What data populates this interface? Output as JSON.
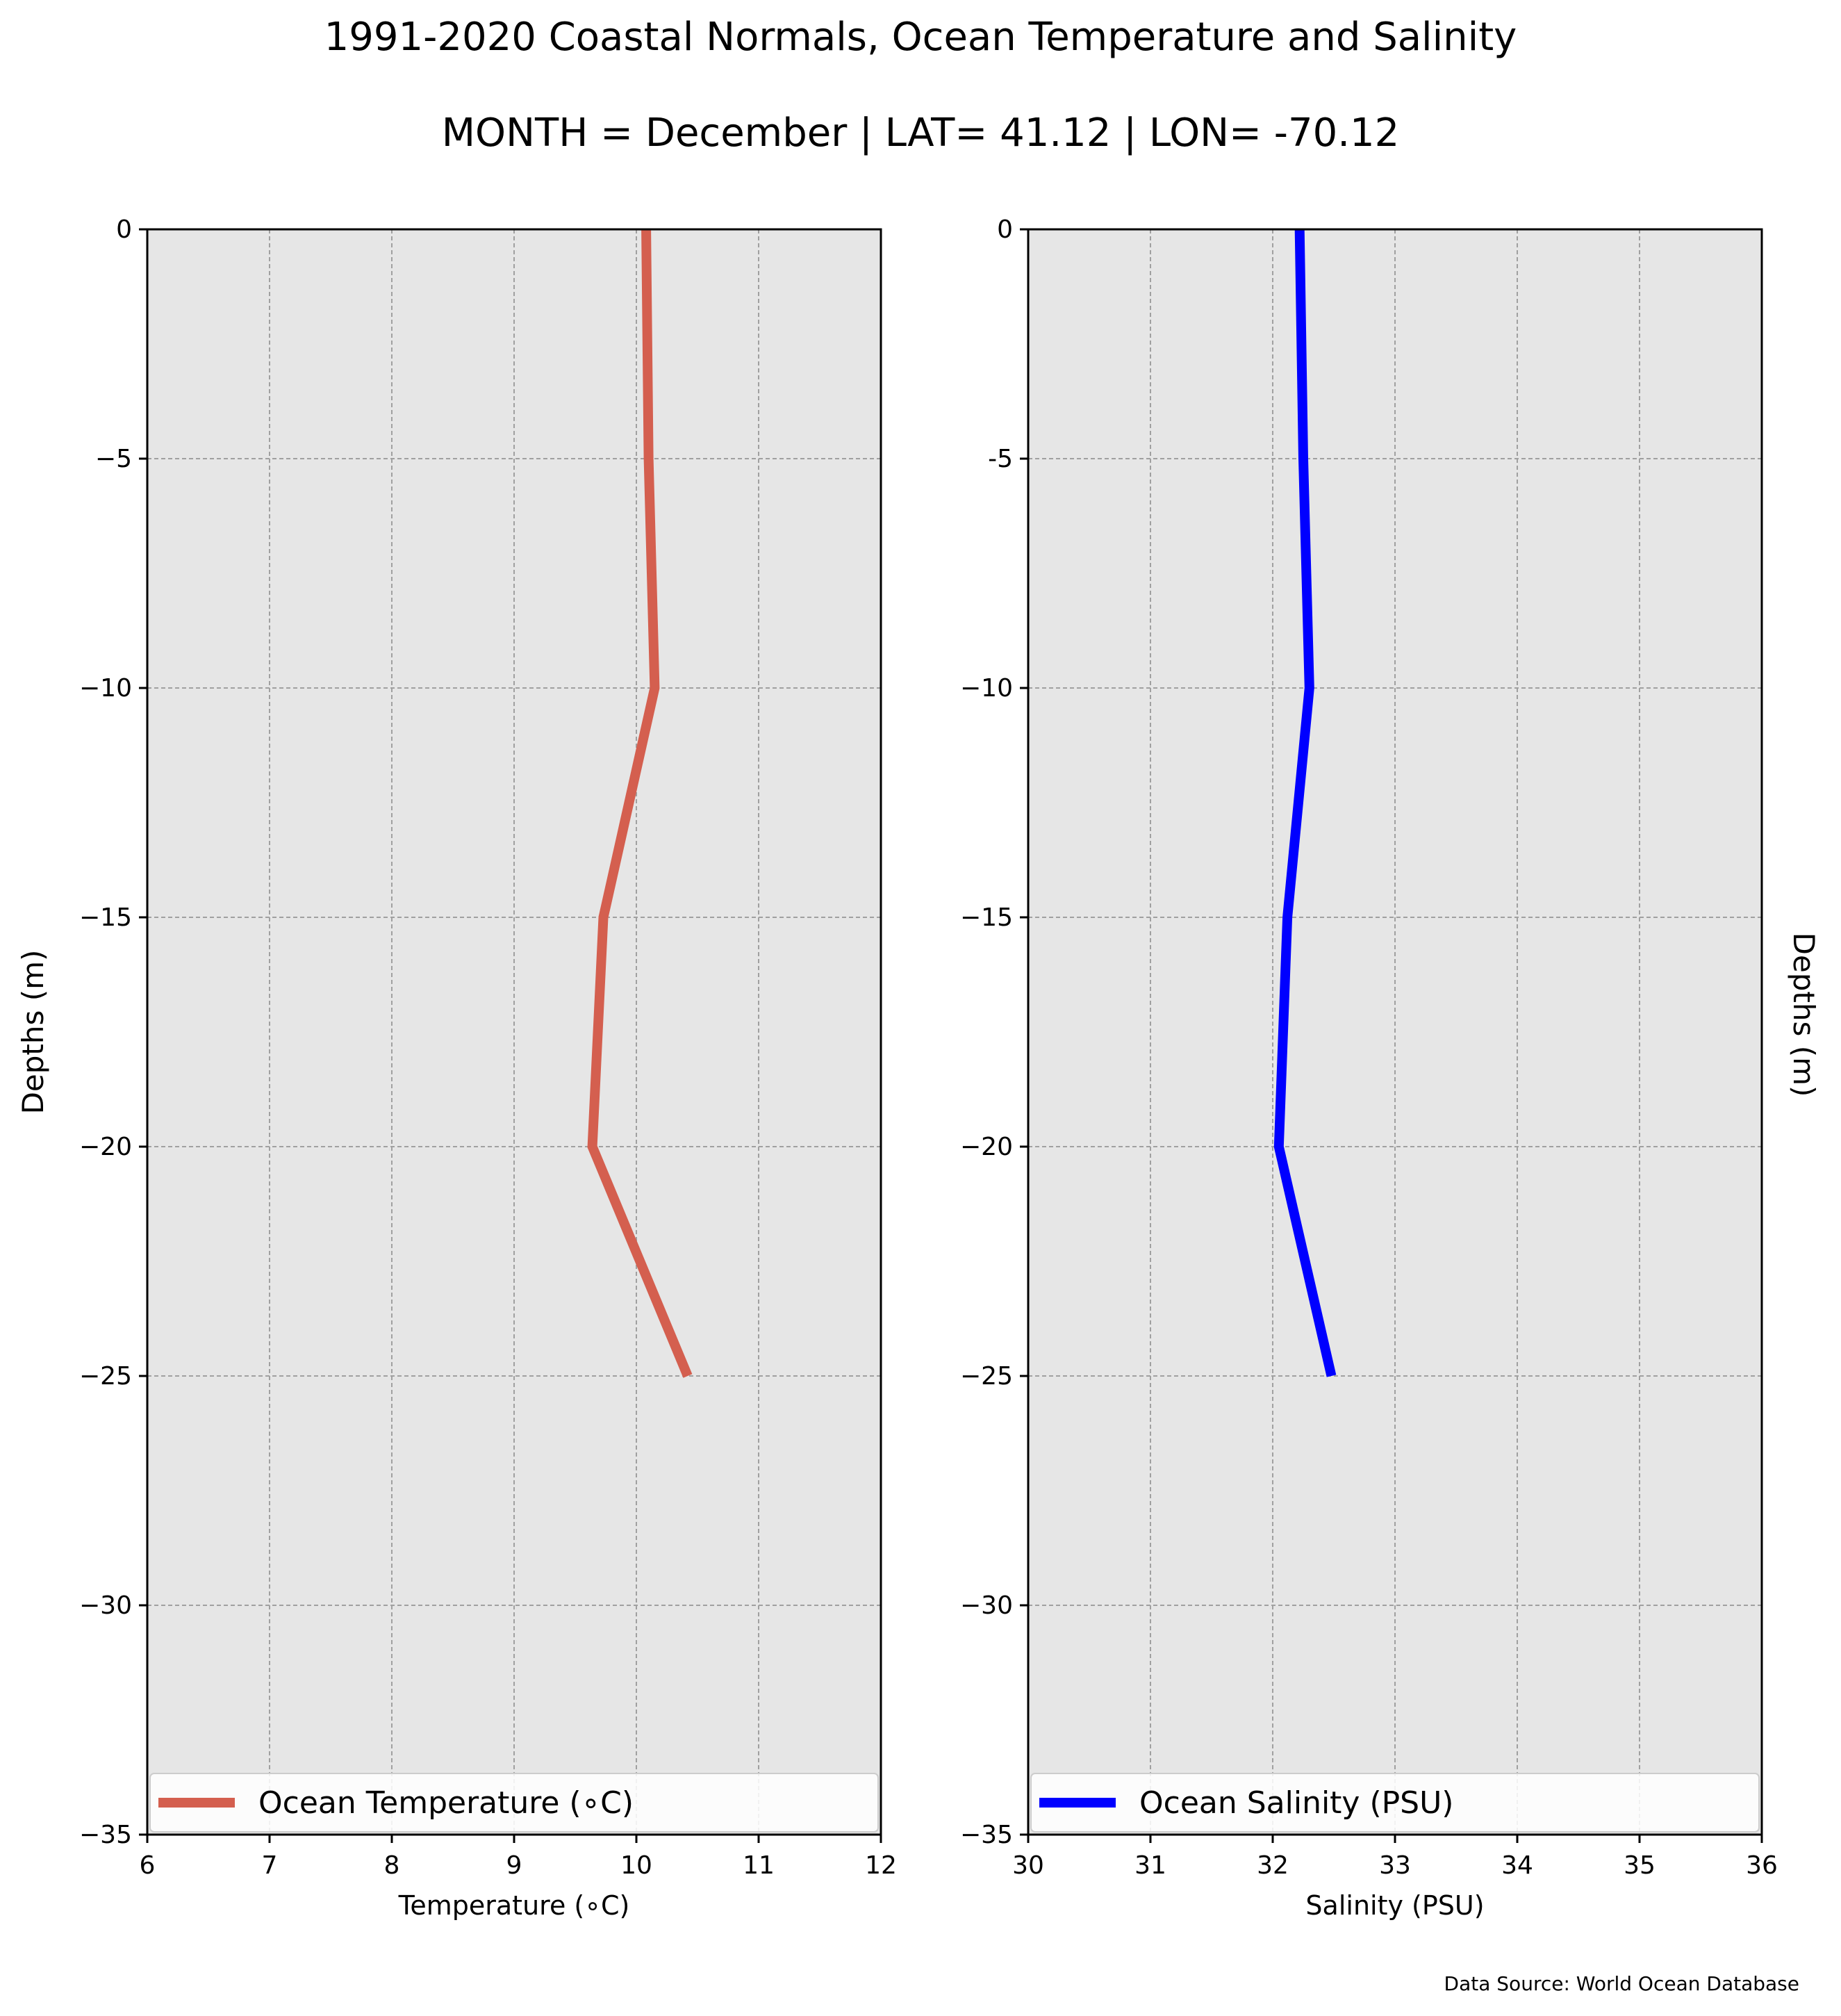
{
  "figure": {
    "title": "1991-2020 Coastal Normals, Ocean Temperature and Salinity",
    "subtitle": "MONTH = December | LAT= 41.12 | LON= -70.12",
    "source_note": "Data Source: World Ocean Database"
  },
  "chart_data": [
    {
      "type": "line",
      "xlabel": "Temperature (∘C)",
      "ylabel": "Depths (m)",
      "xlim": [
        6,
        12
      ],
      "ylim": [
        -35,
        0
      ],
      "xticks": [
        "6",
        "7",
        "8",
        "9",
        "10",
        "11",
        "12"
      ],
      "yticks": [
        "0",
        "−5",
        "−10",
        "−15",
        "−20",
        "−25",
        "−30",
        "−35"
      ],
      "grid": true,
      "legend_position": "bottom",
      "series": [
        {
          "name": "Ocean Temperature (∘C)",
          "color": "#d45f4f",
          "x": [
            10.08,
            10.1,
            10.15,
            9.73,
            9.64,
            10.42
          ],
          "y": [
            0,
            -5,
            -10,
            -15,
            -20,
            -25
          ]
        }
      ]
    },
    {
      "type": "line",
      "xlabel": "Salinity (PSU)",
      "ylabel": "Depths (m)",
      "xlim": [
        30,
        36
      ],
      "ylim": [
        -35,
        0
      ],
      "xticks": [
        "30",
        "31",
        "32",
        "33",
        "34",
        "35",
        "36"
      ],
      "yticks": [
        "0",
        "-5",
        "−10",
        "−15",
        "−20",
        "−25",
        "−30",
        "−35"
      ],
      "grid": true,
      "legend_position": "bottom",
      "series": [
        {
          "name": "Ocean Salinity (PSU)",
          "color": "#0000ff",
          "x": [
            32.22,
            32.25,
            32.3,
            32.12,
            32.05,
            32.48
          ],
          "y": [
            0,
            -5,
            -10,
            -15,
            -20,
            -25
          ]
        }
      ]
    }
  ]
}
